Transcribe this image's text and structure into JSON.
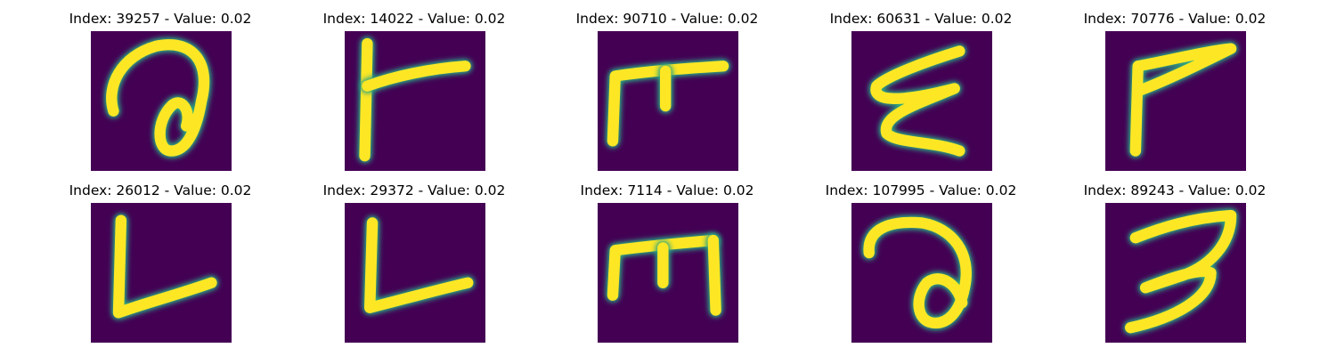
{
  "colors": {
    "background": "#440154",
    "stroke_core": "#fde725",
    "stroke_edge_mid": "#35b779",
    "stroke_edge_outer": "#21908c"
  },
  "panels": [
    {
      "title": "Index: 39257 - Value: 0.02",
      "glyph": "a"
    },
    {
      "title": "Index: 14022 - Value: 0.02",
      "glyph": "T"
    },
    {
      "title": "Index: 90710 - Value: 0.02",
      "glyph": "E"
    },
    {
      "title": "Index: 60631 - Value: 0.02",
      "glyph": "E"
    },
    {
      "title": "Index: 70776 - Value: 0.02",
      "glyph": "F"
    },
    {
      "title": "Index: 26012 - Value: 0.02",
      "glyph": "L"
    },
    {
      "title": "Index: 29372 - Value: 0.02",
      "glyph": "L"
    },
    {
      "title": "Index: 7114 - Value: 0.02",
      "glyph": "E"
    },
    {
      "title": "Index: 107995 - Value: 0.02",
      "glyph": "a"
    },
    {
      "title": "Index: 89243 - Value: 0.02",
      "glyph": "3"
    }
  ]
}
